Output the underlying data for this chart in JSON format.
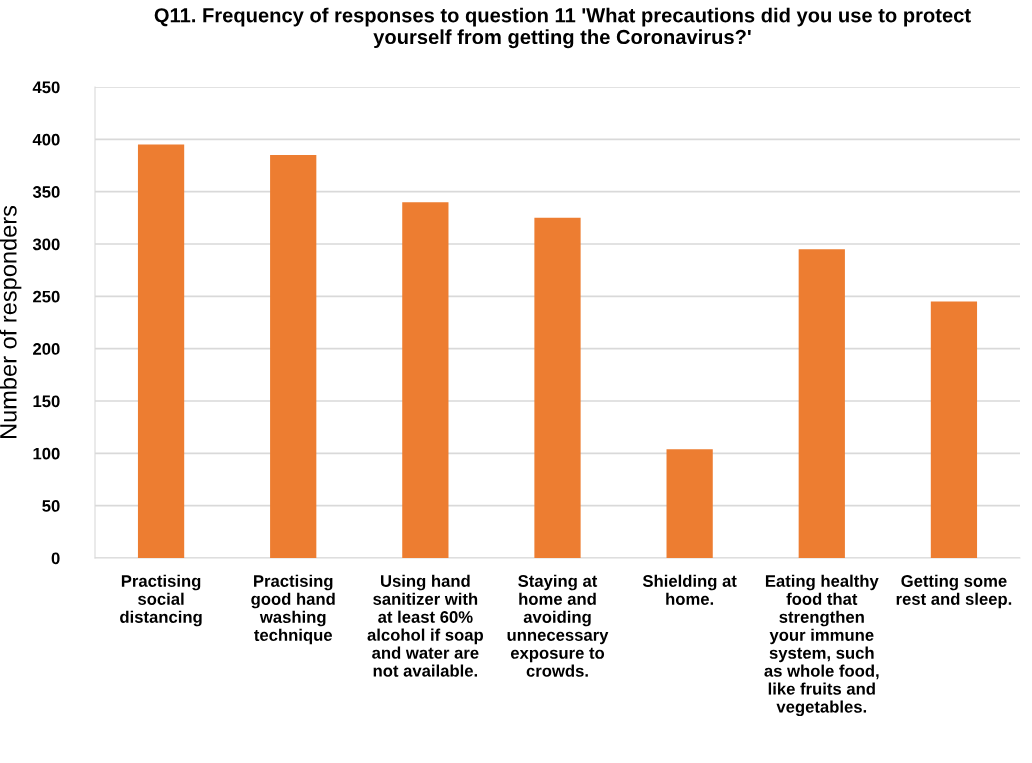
{
  "chart_data": {
    "type": "bar",
    "title": "Q11. Frequency of responses to question 11 'What precautions did you use to protect\nyourself from getting the Coronavirus?'",
    "ylabel": "Number of responders",
    "categories": [
      "Practising\nsocial\ndistancing",
      "Practising\ngood hand\nwashing\ntechnique",
      "Using hand\nsanitizer with\nat least 60%\nalcohol if soap\nand water are\nnot available.",
      "Staying at\nhome and\navoiding\nunnecessary\nexposure to\ncrowds.",
      "Shielding at\nhome.",
      "Eating healthy\nfood that\nstrengthen\nyour immune\nsystem, such\nas whole food,\nlike fruits and\nvegetables.",
      "Getting some\nrest and sleep."
    ],
    "values": [
      395,
      385,
      340,
      325,
      104,
      295,
      245
    ],
    "color": "#ed7d31",
    "ylim": [
      0,
      450
    ],
    "yticks": [
      0,
      50,
      100,
      150,
      200,
      250,
      300,
      350,
      400,
      450
    ],
    "grid": "y"
  }
}
